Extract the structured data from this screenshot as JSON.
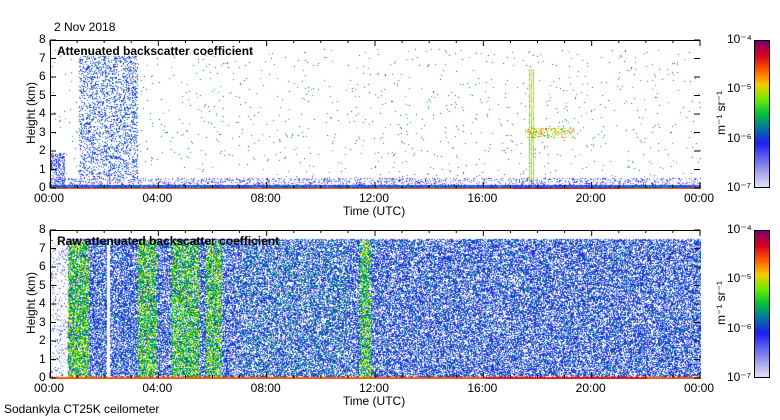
{
  "date_label": "2 Nov 2018",
  "footer": "Sodankyla CT25K ceilometer",
  "chart_data": [
    {
      "type": "heatmap",
      "title": "Attenuated backscatter coefficient",
      "xlabel": "Time (UTC)",
      "ylabel": "Height (km)",
      "xticks": [
        "00:00",
        "04:00",
        "08:00",
        "12:00",
        "16:00",
        "20:00",
        "00:00"
      ],
      "yticks": [
        "0",
        "1",
        "2",
        "3",
        "4",
        "5",
        "6",
        "7",
        "8"
      ],
      "xlim_hours": [
        0,
        24
      ],
      "ylim_km": [
        0,
        8
      ],
      "colorbar": {
        "label": "m⁻¹ sr⁻¹",
        "ticks": [
          "10⁻⁷",
          "10⁻⁶",
          "10⁻⁵",
          "10⁻⁴"
        ],
        "range": [
          1e-07,
          0.0001
        ],
        "scale": "log"
      },
      "features": [
        {
          "name": "precipitation/cloud streaks",
          "t_hours": [
            1.0,
            3.2
          ],
          "height_km": [
            0.5,
            7.2
          ]
        },
        {
          "name": "vertical feature",
          "t_hours": [
            17.6,
            17.8
          ],
          "height_km": [
            0,
            6.5
          ]
        },
        {
          "name": "cloud layer",
          "t_hours": [
            17.5,
            19.3
          ],
          "height_km": [
            2.8,
            3.3
          ]
        },
        {
          "name": "surface layer",
          "t_hours": [
            0,
            24
          ],
          "height_km": [
            0,
            0.3
          ]
        }
      ]
    },
    {
      "type": "heatmap",
      "title": "Raw attenuated backscatter coefficient",
      "xlabel": "Time (UTC)",
      "ylabel": "Height (km)",
      "xticks": [
        "00:00",
        "04:00",
        "08:00",
        "12:00",
        "16:00",
        "20:00",
        "00:00"
      ],
      "yticks": [
        "0",
        "1",
        "2",
        "3",
        "4",
        "5",
        "6",
        "7",
        "8"
      ],
      "xlim_hours": [
        0,
        24
      ],
      "ylim_km": [
        0,
        8
      ],
      "colorbar": {
        "label": "m⁻¹ sr⁻¹",
        "ticks": [
          "10⁻⁷",
          "10⁻⁶",
          "10⁻⁵",
          "10⁻⁴"
        ],
        "range": [
          1e-07,
          0.0001
        ],
        "scale": "log"
      },
      "features": [
        {
          "name": "bright column",
          "t_hours": [
            0.6,
            1.4
          ],
          "height_km": [
            0,
            7.5
          ]
        },
        {
          "name": "bright column",
          "t_hours": [
            3.2,
            3.9
          ],
          "height_km": [
            0,
            7.5
          ]
        },
        {
          "name": "bright column",
          "t_hours": [
            4.4,
            5.5
          ],
          "height_km": [
            0,
            7.5
          ]
        },
        {
          "name": "bright column",
          "t_hours": [
            5.7,
            6.3
          ],
          "height_km": [
            0,
            7.5
          ]
        },
        {
          "name": "bright column",
          "t_hours": [
            11.4,
            11.8
          ],
          "height_km": [
            0,
            7.5
          ]
        }
      ]
    }
  ]
}
